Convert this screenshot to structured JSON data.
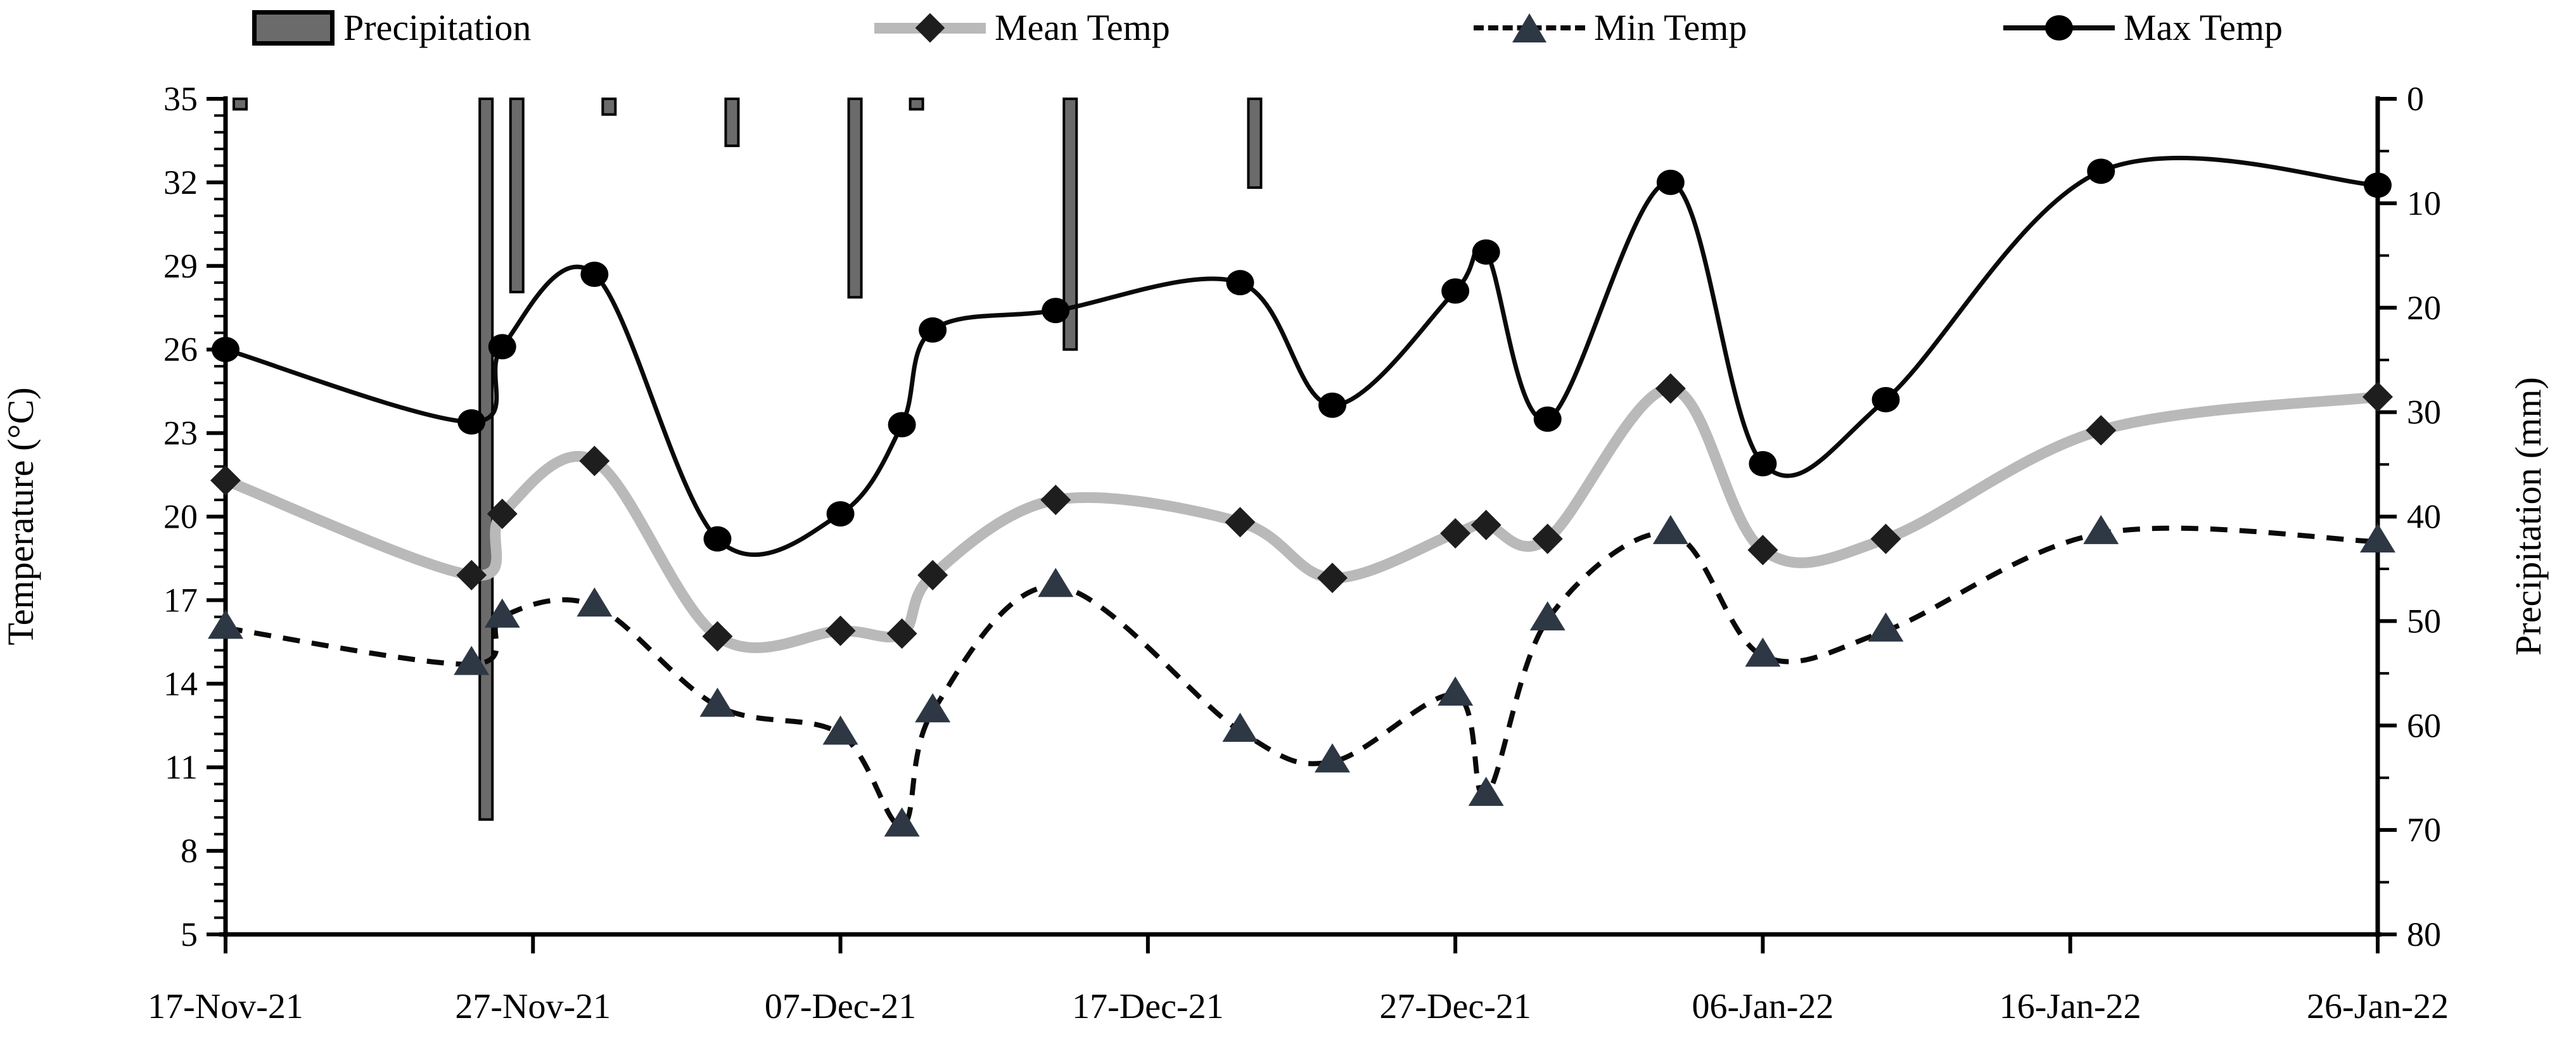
{
  "legend": {
    "items": [
      {
        "label": "Precipitation",
        "swatch": "bar"
      },
      {
        "label": "Mean Temp",
        "swatch": "gray-line-diamond"
      },
      {
        "label": "Min Temp",
        "swatch": "dashed-line-triangle"
      },
      {
        "label": "Max Temp",
        "swatch": "black-line-circle"
      }
    ]
  },
  "colors": {
    "bar_fill": "#6b6b6b",
    "bar_stroke": "#000000",
    "mean_line": "#b9b9b9",
    "mean_marker": "#1e1e1e",
    "min_line": "#0a0a0a",
    "min_marker": "#2e3744",
    "max_line": "#0a0a0a",
    "max_marker": "#000000",
    "axis": "#000000",
    "text": "#000000"
  },
  "chart_data": {
    "type": "combo",
    "subtype": "bars-inverted-top + 3 smoothed lines",
    "title": "",
    "grid": false,
    "legend_position": "top",
    "x_axis": {
      "tick_labels": [
        "17-Nov-21",
        "27-Nov-21",
        "07-Dec-21",
        "17-Dec-21",
        "27-Dec-21",
        "06-Jan-22",
        "16-Jan-22",
        "26-Jan-22"
      ],
      "tick_days": [
        0,
        10,
        20,
        30,
        40,
        50,
        60,
        70
      ],
      "range_days": [
        0,
        70
      ]
    },
    "y_left": {
      "label": "Temperature (°C)",
      "ticks": [
        35,
        32,
        29,
        26,
        23,
        20,
        17,
        14,
        11,
        8,
        5
      ],
      "range": [
        5,
        35
      ],
      "minor_step": 0.6
    },
    "y_right": {
      "label": "Precipitation (mm)",
      "ticks": [
        0,
        10,
        20,
        30,
        40,
        50,
        60,
        70,
        80
      ],
      "range": [
        0,
        80
      ],
      "inverted": true,
      "minor_step": 5
    },
    "points": {
      "dates": [
        "17-Nov-21",
        "25-Nov-21",
        "26-Nov-21",
        "29-Nov-21",
        "03-Dec-21",
        "07-Dec-21",
        "09-Dec-21",
        "10-Dec-21",
        "14-Dec-21",
        "20-Dec-21",
        "23-Dec-21",
        "27-Dec-21",
        "28-Dec-21",
        "30-Dec-21",
        "03-Jan-22",
        "06-Jan-22",
        "10-Jan-22",
        "17-Jan-22",
        "26-Jan-22"
      ],
      "days": [
        0,
        8,
        9,
        12,
        16,
        20,
        22,
        23,
        27,
        33,
        36,
        40,
        41,
        43,
        47,
        50,
        54,
        61,
        70
      ],
      "precipitation_mm": [
        1,
        69,
        18.5,
        1.5,
        4.5,
        19,
        1,
        0,
        24,
        8.5,
        0,
        0,
        0,
        0,
        0,
        0,
        0,
        0,
        0
      ],
      "mean_temp_c": [
        21.3,
        17.9,
        20.1,
        22.0,
        15.7,
        15.9,
        15.8,
        17.9,
        20.6,
        19.8,
        17.8,
        19.4,
        19.7,
        19.2,
        24.6,
        18.8,
        19.2,
        23.1,
        24.3
      ],
      "min_temp_c": [
        16.0,
        14.7,
        16.4,
        16.8,
        13.2,
        12.2,
        8.9,
        13.0,
        17.5,
        12.3,
        11.2,
        13.6,
        10.0,
        16.3,
        19.4,
        15.0,
        15.9,
        19.4,
        19.1
      ],
      "max_temp_c": [
        26.0,
        23.4,
        26.1,
        28.7,
        19.2,
        20.1,
        23.3,
        26.7,
        27.4,
        28.4,
        24.0,
        28.1,
        29.5,
        23.5,
        32.0,
        21.9,
        24.2,
        32.4,
        31.9
      ]
    },
    "series": [
      {
        "name": "Precipitation",
        "type": "bar",
        "axis": "right"
      },
      {
        "name": "Mean Temp",
        "type": "line-smooth",
        "axis": "left",
        "marker": "diamond"
      },
      {
        "name": "Min Temp",
        "type": "line-smooth-dashed",
        "axis": "left",
        "marker": "triangle"
      },
      {
        "name": "Max Temp",
        "type": "line-smooth",
        "axis": "left",
        "marker": "circle"
      }
    ]
  }
}
